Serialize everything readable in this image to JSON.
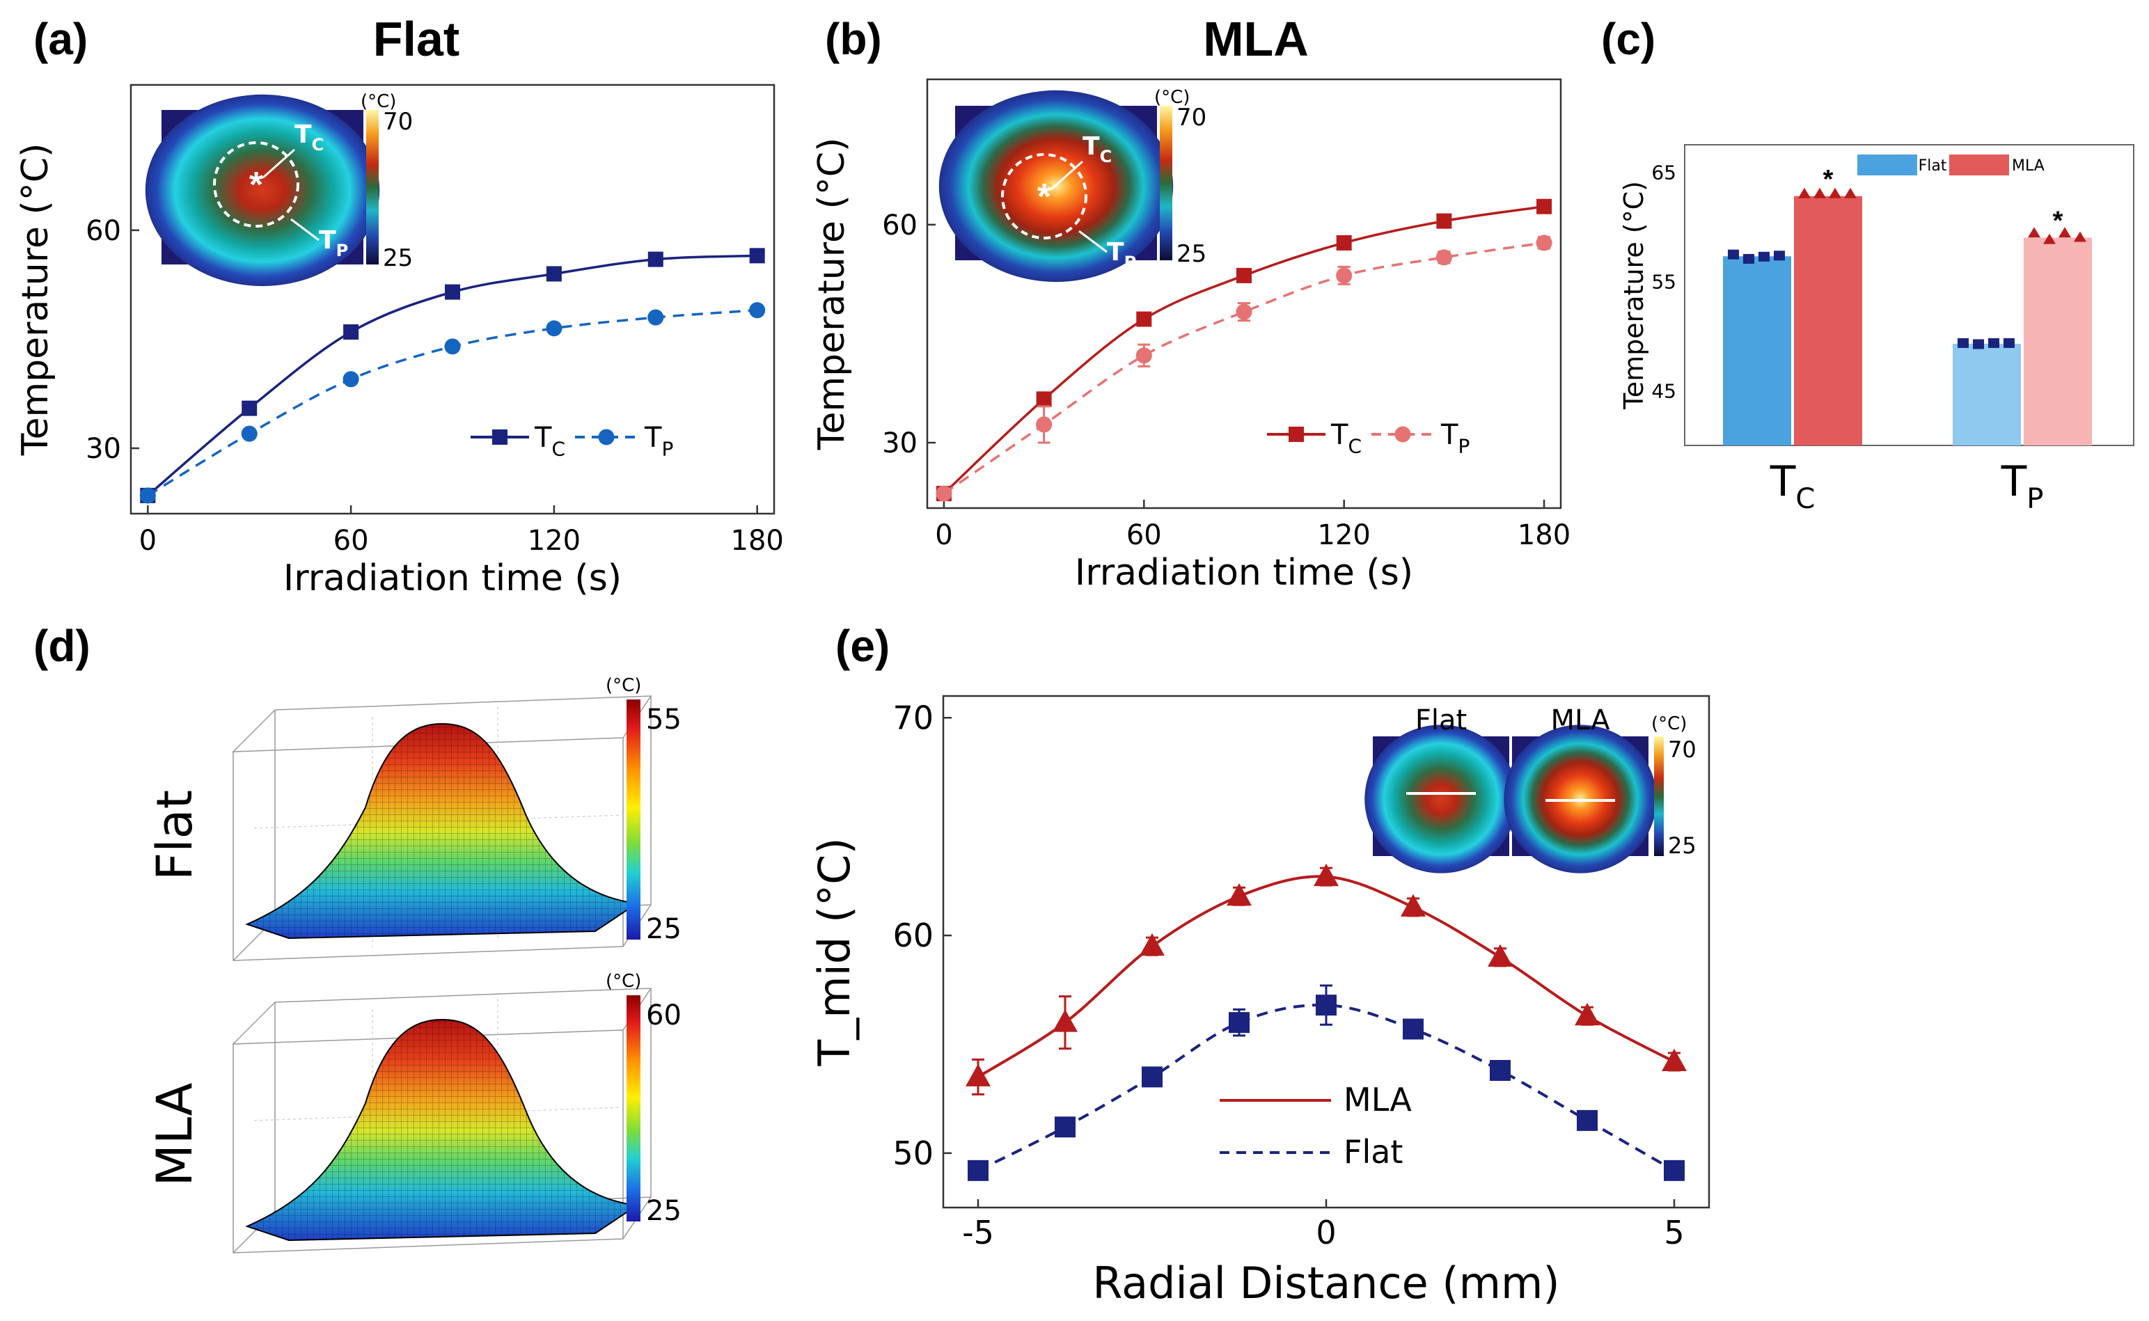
{
  "panel_labels": {
    "a": "(a)",
    "b": "(b)",
    "c": "(c)",
    "d": "(d)",
    "e": "(e)"
  },
  "colors": {
    "flat_dark": "#1a237e",
    "flat_light": "#1565c0",
    "mla_dark": "#b71c1c",
    "mla_light": "#e57373",
    "bar_flat_c": "#4aa3df",
    "bar_mla_c": "#e35a5a",
    "bar_flat_p": "#8ec9f0",
    "bar_mla_p": "#f7b4b4"
  },
  "chart_data": [
    {
      "id": "a",
      "type": "line",
      "title": "Flat",
      "xlabel": "Irradiation time (s)",
      "ylabel": "Temperature (°C)",
      "xlim": [
        -5,
        185
      ],
      "ylim": [
        21,
        80
      ],
      "xticks": [
        0,
        60,
        120,
        180
      ],
      "yticks": [
        30,
        60
      ],
      "x": [
        0,
        30,
        60,
        90,
        120,
        150,
        180
      ],
      "series": [
        {
          "name": "T_C",
          "label_main": "T",
          "label_sub": "C",
          "style": "solid",
          "marker": "square",
          "values": [
            23.5,
            35.5,
            46,
            51.5,
            54,
            56,
            56.5
          ]
        },
        {
          "name": "T_P",
          "label_main": "T",
          "label_sub": "P",
          "style": "dashed",
          "marker": "circle",
          "values": [
            23.5,
            32,
            39.5,
            44,
            46.5,
            48,
            49
          ]
        }
      ],
      "inset": {
        "cbar_unit": "(°C)",
        "cbar_max": "70",
        "cbar_min": "25",
        "label_c_main": "T",
        "label_c_sub": "C",
        "label_p_main": "T",
        "label_p_sub": "P",
        "center_mark": "*"
      }
    },
    {
      "id": "b",
      "type": "line",
      "title": "MLA",
      "xlabel": "Irradiation time (s)",
      "ylabel": "Temperature (°C)",
      "xlim": [
        -5,
        185
      ],
      "ylim": [
        21,
        80
      ],
      "xticks": [
        0,
        60,
        120,
        180
      ],
      "yticks": [
        30,
        60
      ],
      "x": [
        0,
        30,
        60,
        90,
        120,
        150,
        180
      ],
      "series": [
        {
          "name": "T_C",
          "label_main": "T",
          "label_sub": "C",
          "style": "solid",
          "marker": "square",
          "values": [
            23,
            36,
            47,
            53,
            57.5,
            60.5,
            62.5
          ],
          "errors": [
            0.5,
            0.8,
            0.8,
            0.6,
            0.6,
            0.6,
            0.6
          ]
        },
        {
          "name": "T_P",
          "label_main": "T",
          "label_sub": "P",
          "style": "dashed",
          "marker": "circle",
          "values": [
            23,
            32.5,
            42,
            48,
            53,
            55.5,
            57.5
          ],
          "errors": [
            0.5,
            2.5,
            1.5,
            1.2,
            1.2,
            0.8,
            0.8
          ]
        }
      ],
      "inset": {
        "cbar_unit": "(°C)",
        "cbar_max": "70",
        "cbar_min": "25",
        "label_c_main": "T",
        "label_c_sub": "C",
        "label_p_main": "T",
        "label_p_sub": "P",
        "center_mark": "*"
      }
    },
    {
      "id": "c",
      "type": "bar",
      "ylabel": "Temperature (°C)",
      "ylim": [
        40,
        67.5
      ],
      "yticks": [
        45,
        55,
        65
      ],
      "categories": [
        {
          "main": "T",
          "sub": "C"
        },
        {
          "main": "T",
          "sub": "P"
        }
      ],
      "series": [
        {
          "name": "Flat",
          "values": [
            57.3,
            49.3
          ],
          "points": [
            [
              57.4,
              57.0,
              57.2,
              57.3
            ],
            [
              49.3,
              49.2,
              49.3,
              49.3
            ]
          ]
        },
        {
          "name": "MLA",
          "values": [
            62.8,
            59.0
          ],
          "points": [
            [
              63.0,
              63.0,
              63.0,
              63.0
            ],
            [
              59.4,
              58.8,
              59.4,
              59.0
            ]
          ]
        }
      ],
      "significance": [
        "*",
        "*"
      ]
    },
    {
      "id": "d",
      "type": "surface",
      "rows": [
        {
          "label": "Flat",
          "cbar_unit": "(°C)",
          "cbar_max": "55",
          "cbar_min": "25"
        },
        {
          "label": "MLA",
          "cbar_unit": "(°C)",
          "cbar_max": "60",
          "cbar_min": "25"
        }
      ]
    },
    {
      "id": "e",
      "type": "line",
      "xlabel": "Radial Distance (mm)",
      "ylabel": "T_mid (°C)",
      "xlim": [
        -5.5,
        5.5
      ],
      "ylim": [
        47.5,
        71
      ],
      "xticks": [
        -5,
        0,
        5
      ],
      "yticks": [
        50,
        60,
        70
      ],
      "x": [
        -5,
        -3.75,
        -2.5,
        -1.25,
        0,
        1.25,
        2.5,
        3.75,
        5
      ],
      "series": [
        {
          "name": "MLA",
          "style": "solid",
          "marker": "triangle",
          "values": [
            53.5,
            56,
            59.5,
            61.8,
            62.7,
            61.3,
            59,
            56.3,
            54.2
          ],
          "errors": [
            0.8,
            1.2,
            0.4,
            0.4,
            0.4,
            0.4,
            0.4,
            0.4,
            0.4
          ]
        },
        {
          "name": "Flat",
          "style": "dashed",
          "marker": "square",
          "values": [
            49.2,
            51.2,
            53.5,
            56,
            56.8,
            55.7,
            53.8,
            51.5,
            49.2
          ],
          "errors": [
            0.3,
            0.3,
            0.3,
            0.6,
            0.9,
            0.3,
            0.3,
            0.3,
            0.3
          ]
        }
      ],
      "inset": {
        "title_flat": "Flat",
        "title_mla": "MLA",
        "cbar_unit": "(°C)",
        "cbar_max": "70",
        "cbar_min": "25"
      }
    }
  ]
}
